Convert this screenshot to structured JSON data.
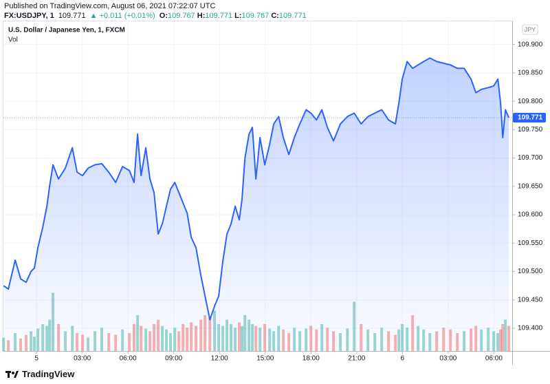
{
  "header": {
    "published": "Published on TradingView.com, August 06, 2021 07:22:07 UTC",
    "symbol": "FX:USDJPY, 1",
    "last": "109.771",
    "change": "▲ +0.011 (+0.01%)",
    "ohlc": [
      {
        "label": "O:",
        "value": "109.767"
      },
      {
        "label": "H:",
        "value": "109.771"
      },
      {
        "label": "L:",
        "value": "109.767"
      },
      {
        "label": "C:",
        "value": "109.771"
      }
    ]
  },
  "chart_data": {
    "type": "area",
    "title": "U.S. Dollar / Japanese Yen, 1, FXCM",
    "subtitle": "Vol",
    "currency": "JPY",
    "color": "#2962ff",
    "x": [
      -2.16,
      -1.85,
      -1.4,
      -1.04,
      -0.68,
      -0.36,
      -0.14,
      0.09,
      0.41,
      0.68,
      0.86,
      1.08,
      1.44,
      1.89,
      2.35,
      2.66,
      3.02,
      3.38,
      3.83,
      4.28,
      4.74,
      5.19,
      5.64,
      6.09,
      6.4,
      6.63,
      6.86,
      7.17,
      7.44,
      7.71,
      7.98,
      8.25,
      8.52,
      8.79,
      9.07,
      9.34,
      9.61,
      9.88,
      10.15,
      10.46,
      10.78,
      11.05,
      11.37,
      11.68,
      11.95,
      12.22,
      12.49,
      12.76,
      13.03,
      13.3,
      13.48,
      13.67,
      13.94,
      14.16,
      14.39,
      14.66,
      14.97,
      15.29,
      15.56,
      15.88,
      16.19,
      16.55,
      16.91,
      17.27,
      17.68,
      18.0,
      18.36,
      18.72,
      19.08,
      19.48,
      19.93,
      20.39,
      20.84,
      21.29,
      21.74,
      22.19,
      22.64,
      23.09,
      23.54,
      23.77,
      23.99,
      24.31,
      24.67,
      25.03,
      25.39,
      25.8,
      26.25,
      26.7,
      27.15,
      27.6,
      28.05,
      28.5,
      28.82,
      29.18,
      29.63,
      29.99,
      30.26,
      30.44,
      30.58,
      30.76,
      30.98
    ],
    "values": [
      109.475,
      109.469,
      109.52,
      109.487,
      109.481,
      109.5,
      109.506,
      109.542,
      109.578,
      109.615,
      109.651,
      109.688,
      109.663,
      109.682,
      109.718,
      109.675,
      109.669,
      109.682,
      109.688,
      109.69,
      109.675,
      109.657,
      109.685,
      109.678,
      109.657,
      109.742,
      109.669,
      109.718,
      109.663,
      109.639,
      109.566,
      109.584,
      109.615,
      109.645,
      109.657,
      109.639,
      109.621,
      109.603,
      109.56,
      109.542,
      109.493,
      109.457,
      109.415,
      109.439,
      109.457,
      109.518,
      109.566,
      109.584,
      109.615,
      109.591,
      109.627,
      109.7,
      109.742,
      109.754,
      109.663,
      109.736,
      109.688,
      109.724,
      109.76,
      109.773,
      109.736,
      109.706,
      109.736,
      109.76,
      109.785,
      109.779,
      109.767,
      109.785,
      109.754,
      109.73,
      109.76,
      109.773,
      109.779,
      109.76,
      109.773,
      109.779,
      109.785,
      109.767,
      109.76,
      109.797,
      109.839,
      109.87,
      109.858,
      109.864,
      109.87,
      109.876,
      109.87,
      109.867,
      109.864,
      109.858,
      109.858,
      109.839,
      109.815,
      109.821,
      109.824,
      109.827,
      109.839,
      109.797,
      109.736,
      109.785,
      109.771
    ],
    "volume": {
      "up_color": "#26a69a",
      "down_color": "#ef5350",
      "ylim": [
        0,
        100
      ],
      "values": [
        15,
        12,
        20,
        14,
        18,
        22,
        16,
        25,
        30,
        28,
        35,
        65,
        30,
        22,
        28,
        20,
        18,
        15,
        22,
        26,
        20,
        18,
        24,
        20,
        30,
        40,
        28,
        25,
        22,
        30,
        35,
        28,
        24,
        20,
        26,
        22,
        30,
        26,
        32,
        28,
        35,
        40,
        38,
        45,
        30,
        28,
        35,
        30,
        26,
        32,
        28,
        40,
        35,
        30,
        28,
        26,
        30,
        25,
        22,
        28,
        24,
        20,
        26,
        22,
        25,
        28,
        24,
        30,
        26,
        22,
        20,
        25,
        55,
        30,
        24,
        20,
        26,
        22,
        18,
        24,
        30,
        26,
        40,
        28,
        24,
        20,
        22,
        26,
        24,
        20,
        22,
        25,
        28,
        24,
        26,
        22,
        20,
        24,
        30,
        35,
        28
      ]
    },
    "xlim": [
      -2.17,
      31.2
    ],
    "xticks": [
      {
        "value": 0,
        "label": "5"
      },
      {
        "value": 3,
        "label": "03:00"
      },
      {
        "value": 6,
        "label": "06:00"
      },
      {
        "value": 9,
        "label": "09:00"
      },
      {
        "value": 12,
        "label": "12:00"
      },
      {
        "value": 15,
        "label": "15:00"
      },
      {
        "value": 18,
        "label": "18:00"
      },
      {
        "value": 21,
        "label": "21:00"
      },
      {
        "value": 24,
        "label": "6"
      },
      {
        "value": 27,
        "label": "03:00"
      },
      {
        "value": 30,
        "label": "06:00"
      }
    ],
    "ylim": [
      109.36,
      109.942
    ],
    "yticks": [
      {
        "value": 109.4,
        "label": "109.400"
      },
      {
        "value": 109.45,
        "label": "109.450"
      },
      {
        "value": 109.5,
        "label": "109.500"
      },
      {
        "value": 109.55,
        "label": "109.550"
      },
      {
        "value": 109.6,
        "label": "109.600"
      },
      {
        "value": 109.65,
        "label": "109.650"
      },
      {
        "value": 109.7,
        "label": "109.700"
      },
      {
        "value": 109.75,
        "label": "109.750"
      },
      {
        "value": 109.8,
        "label": "109.800"
      },
      {
        "value": 109.85,
        "label": "109.850"
      },
      {
        "value": 109.9,
        "label": "109.900"
      }
    ],
    "grid": true,
    "last_price": {
      "value": 109.771,
      "label": "109.771"
    }
  },
  "footer": {
    "brand": "TradingView"
  }
}
